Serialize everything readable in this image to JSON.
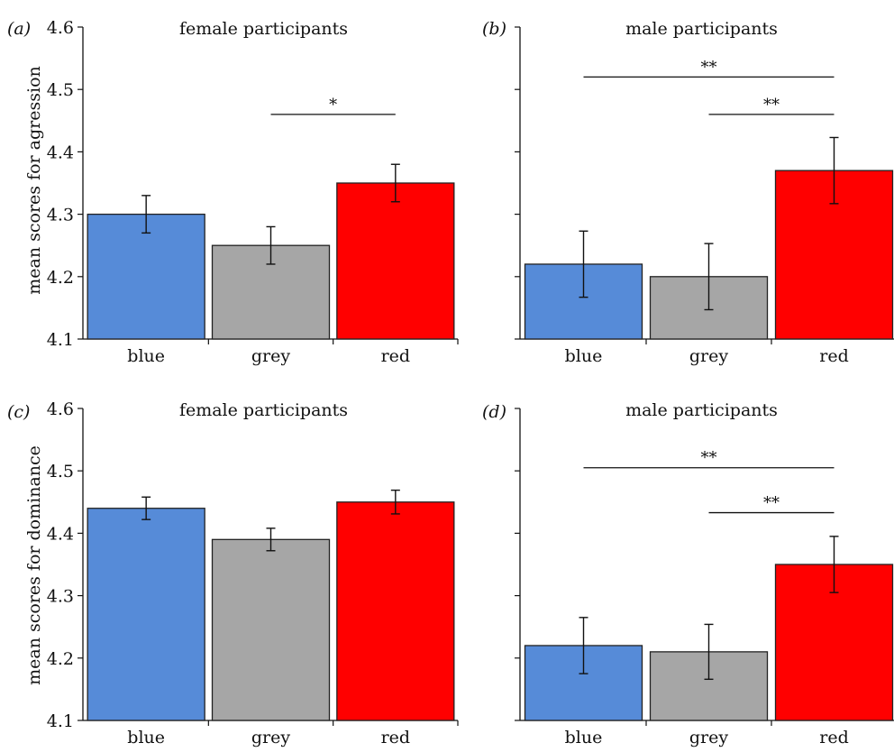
{
  "figure": {
    "ylabel_top": "mean scores for agression",
    "ylabel_bottom": "mean scores for dominance"
  },
  "colors": {
    "blue": "#568bd8",
    "grey": "#a6a6a6",
    "red": "#ff0000",
    "edge": "#222222"
  },
  "chart_data": [
    {
      "panel": "(a)",
      "type": "bar",
      "title": "female participants",
      "categories": [
        "blue",
        "grey",
        "red"
      ],
      "values": [
        4.3,
        4.25,
        4.35
      ],
      "errors": [
        0.03,
        0.03,
        0.03
      ],
      "ylabel": "mean scores for agression",
      "ylim": [
        4.1,
        4.6
      ],
      "yticks": [
        "4.1",
        "4.2",
        "4.3",
        "4.4",
        "4.5",
        "4.6"
      ],
      "significance": [
        {
          "from": "grey",
          "to": "red",
          "label": "*",
          "level": 4.46
        }
      ]
    },
    {
      "panel": "(b)",
      "type": "bar",
      "title": "male participants",
      "categories": [
        "blue",
        "grey",
        "red"
      ],
      "values": [
        4.22,
        4.2,
        4.37
      ],
      "errors": [
        0.053,
        0.053,
        0.053
      ],
      "ylabel": "",
      "ylim": [
        4.1,
        4.6
      ],
      "yticks": [],
      "significance": [
        {
          "from": "blue",
          "to": "red",
          "label": "**",
          "level": 4.52
        },
        {
          "from": "grey",
          "to": "red",
          "label": "**",
          "level": 4.46
        }
      ]
    },
    {
      "panel": "(c)",
      "type": "bar",
      "title": "female participants",
      "categories": [
        "blue",
        "grey",
        "red"
      ],
      "values": [
        4.44,
        4.39,
        4.45
      ],
      "errors": [
        0.018,
        0.018,
        0.019
      ],
      "ylabel": "mean scores for dominance",
      "ylim": [
        4.1,
        4.6
      ],
      "yticks": [
        "4.1",
        "4.2",
        "4.3",
        "4.4",
        "4.5",
        "4.6"
      ],
      "significance": []
    },
    {
      "panel": "(d)",
      "type": "bar",
      "title": "male participants",
      "categories": [
        "blue",
        "grey",
        "red"
      ],
      "values": [
        4.22,
        4.21,
        4.35
      ],
      "errors": [
        0.045,
        0.044,
        0.045
      ],
      "ylabel": "",
      "ylim": [
        4.1,
        4.6
      ],
      "yticks": [],
      "significance": [
        {
          "from": "blue",
          "to": "red",
          "label": "**",
          "level": 4.505
        },
        {
          "from": "grey",
          "to": "red",
          "label": "**",
          "level": 4.433
        }
      ]
    }
  ]
}
